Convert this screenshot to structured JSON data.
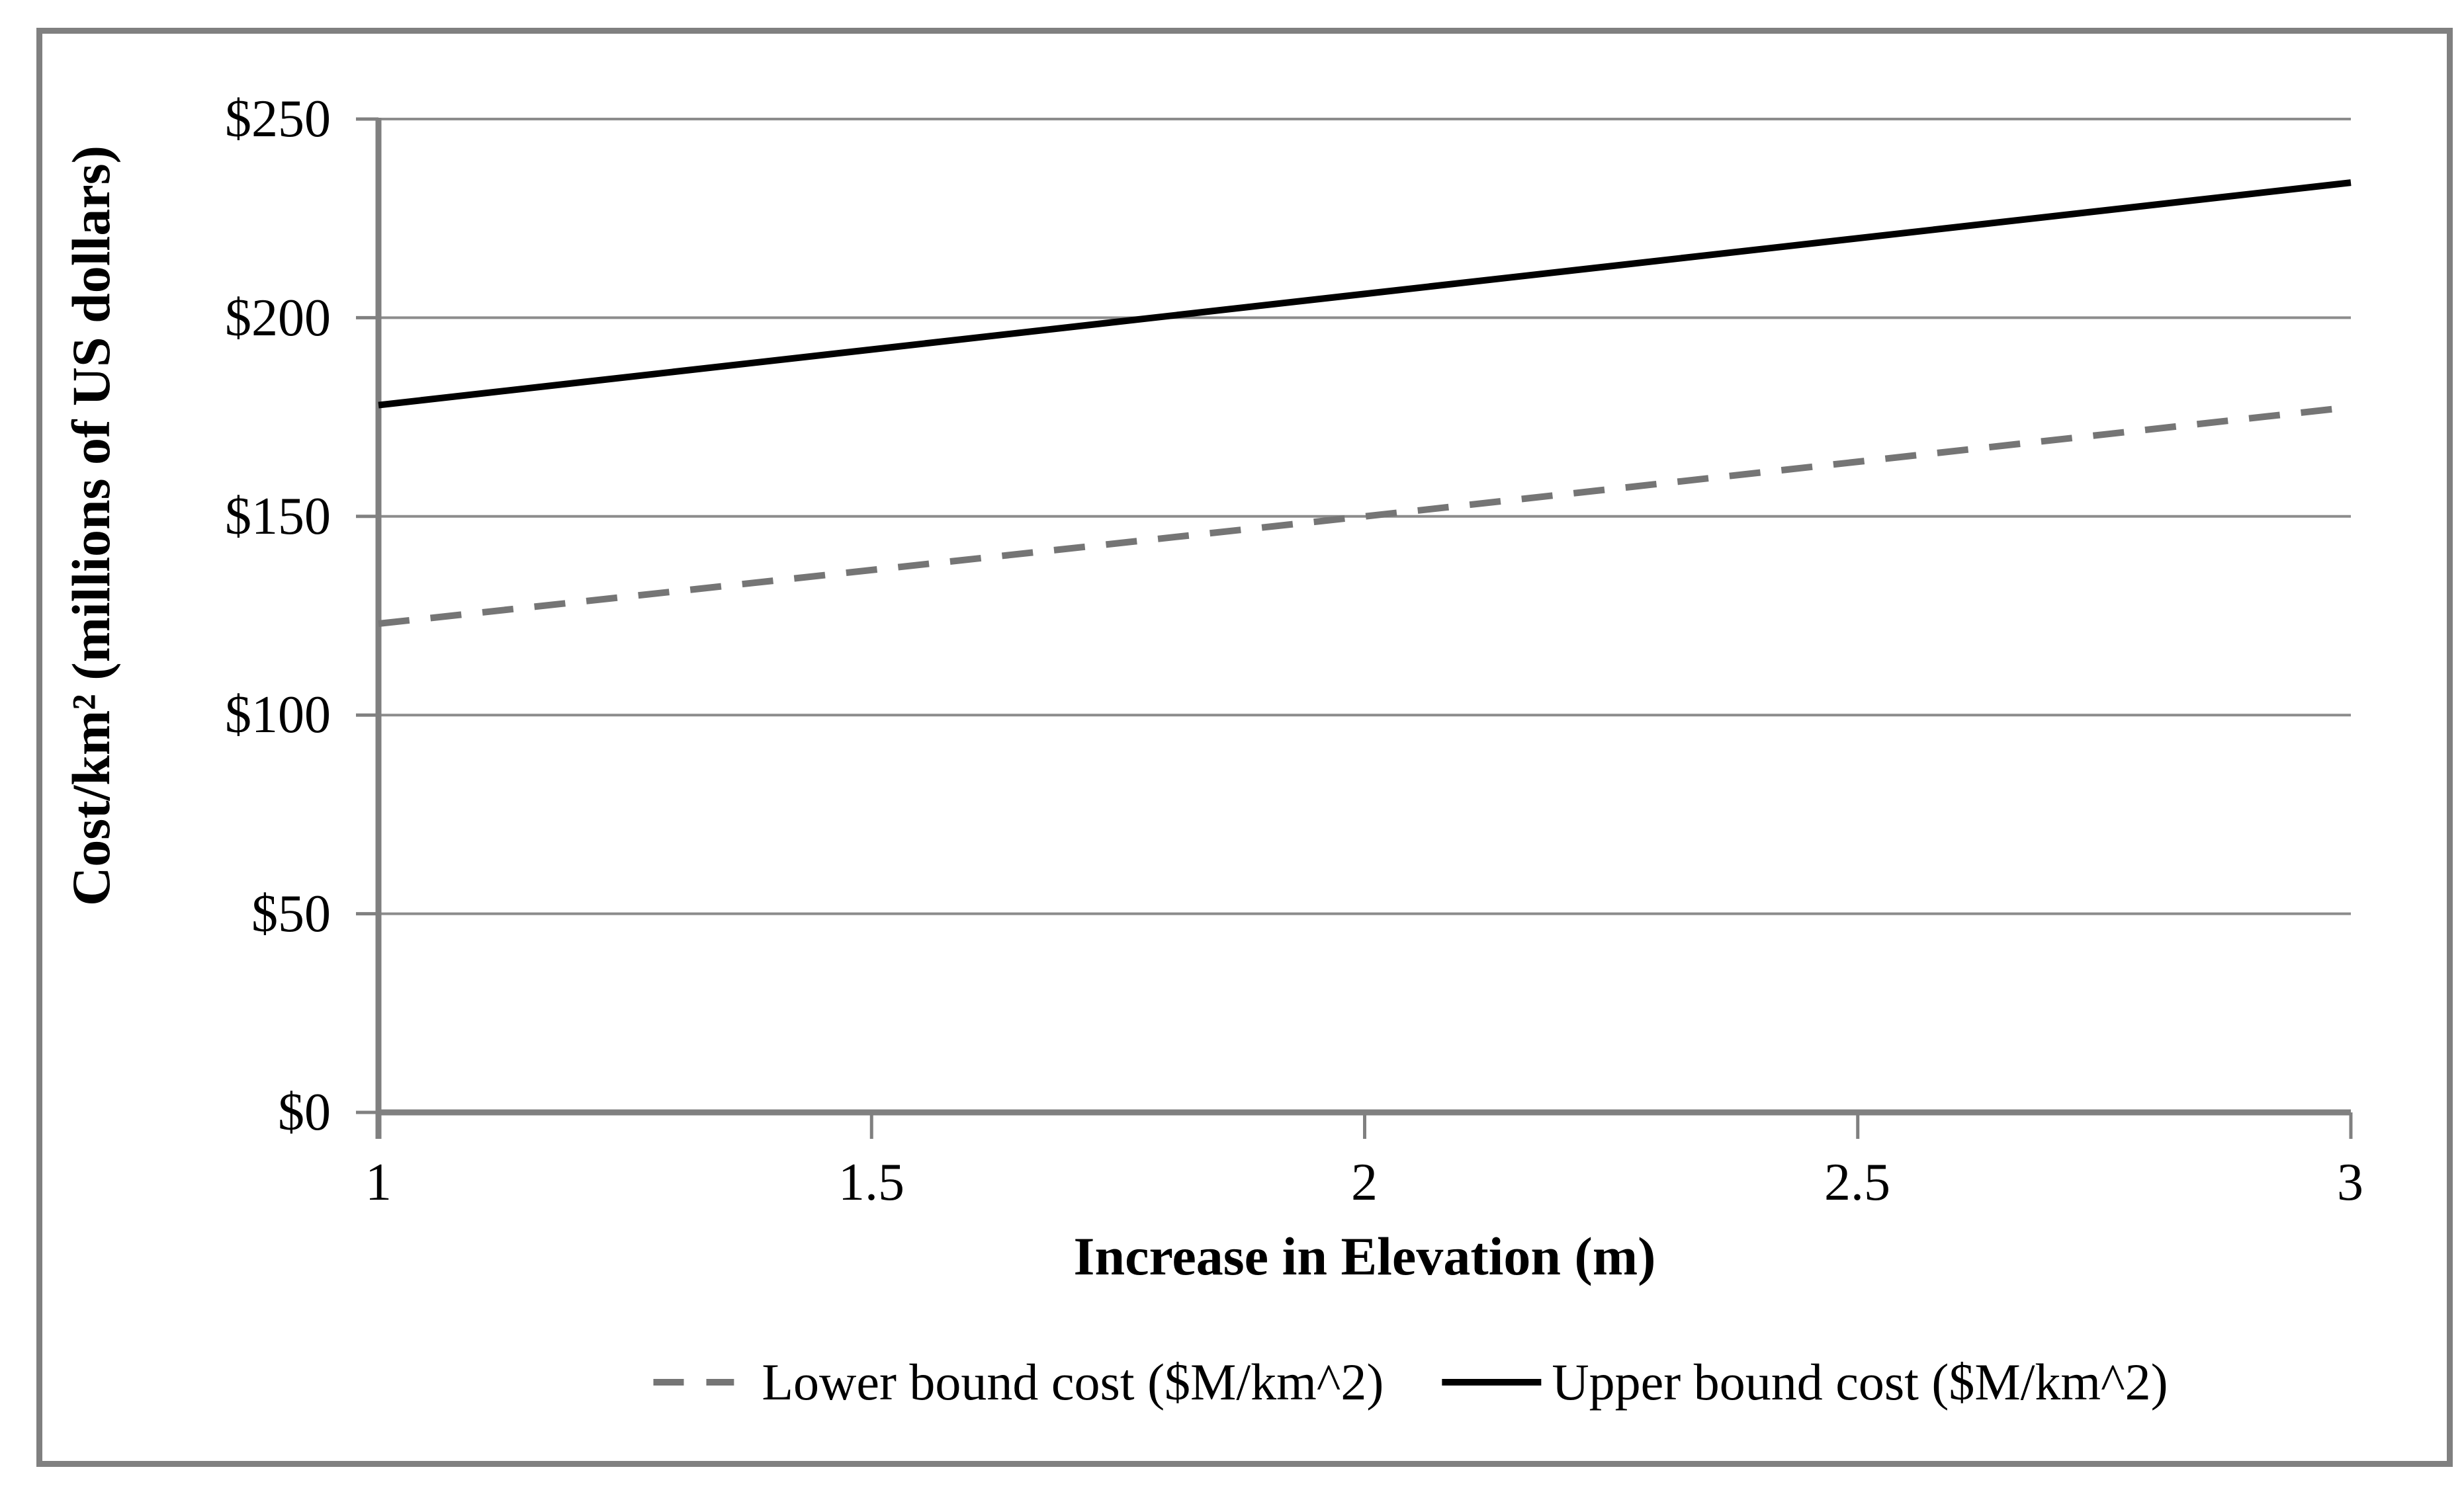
{
  "figure": {
    "background_color": "#ffffff",
    "border_color": "#808080",
    "axis_color": "#808080",
    "gridline_color": "#8c8c8c"
  },
  "chart_data": {
    "type": "line",
    "title": "",
    "xlabel": "Increase in Elevation (m)",
    "ylabel": "Cost/km² (millions of US dollars)",
    "xlim": [
      1,
      3
    ],
    "ylim": [
      0,
      250
    ],
    "x_ticks": [
      1,
      1.5,
      2,
      2.5,
      3
    ],
    "x_tick_labels": [
      "1",
      "1.5",
      "2",
      "2.5",
      "3"
    ],
    "y_ticks": [
      0,
      50,
      100,
      150,
      200,
      250
    ],
    "y_tick_labels": [
      "$0",
      "$50",
      "$100",
      "$150",
      "$200",
      "$250"
    ],
    "grid": "horizontal-only",
    "legend_position": "bottom",
    "series": [
      {
        "name": "Lower bound cost ($M/km^2)",
        "style": "dashed",
        "color": "#757575",
        "x": [
          1,
          2,
          3
        ],
        "values": [
          123,
          150,
          177.5
        ]
      },
      {
        "name": "Upper bound cost ($M/km^2)",
        "style": "solid",
        "color": "#000000",
        "x": [
          1,
          2,
          3
        ],
        "values": [
          178,
          206,
          234
        ]
      }
    ]
  }
}
